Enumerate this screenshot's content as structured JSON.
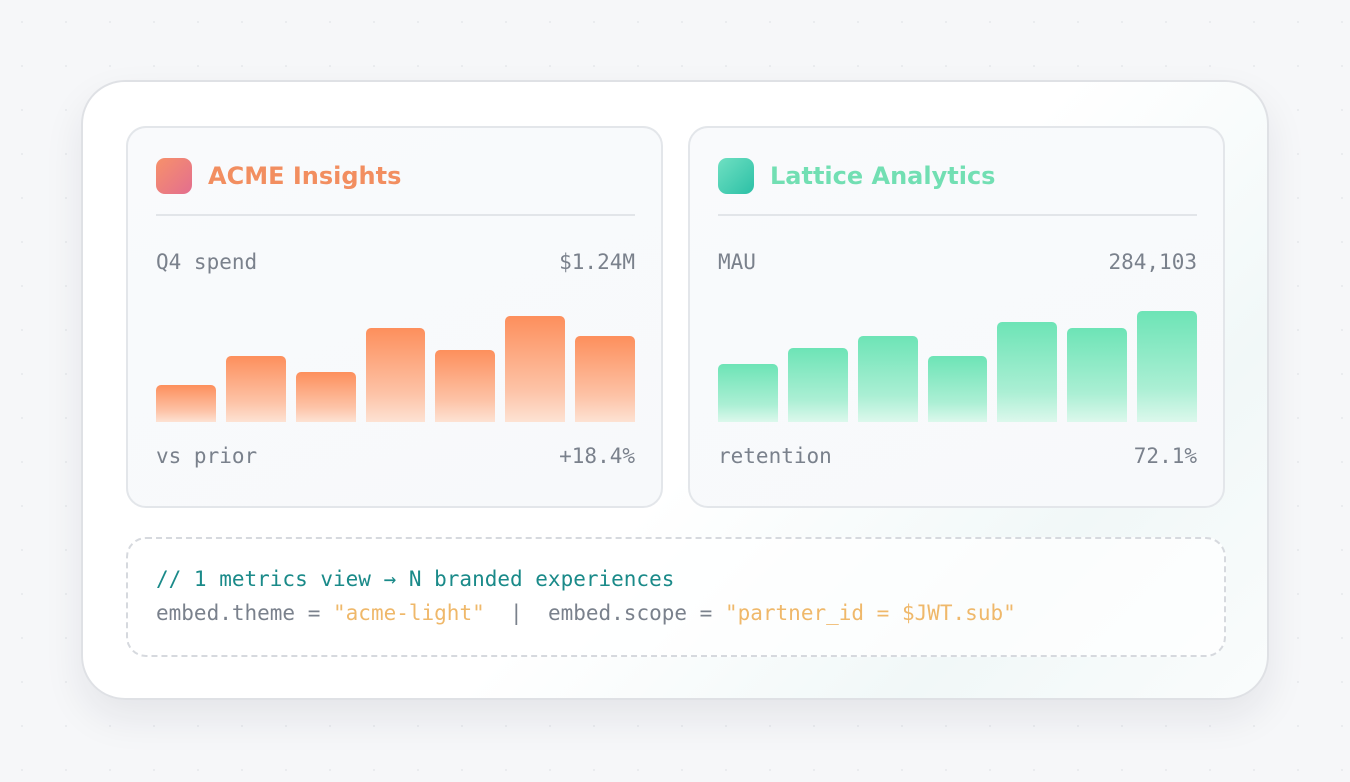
{
  "cards": [
    {
      "brand": "ACME Insights",
      "metric_label": "Q4 spend",
      "metric_value": "$1.24M",
      "footer_label": "vs prior",
      "footer_value": "+18.4%",
      "accent": "#f28e60",
      "bars": [
        0.31,
        0.56,
        0.42,
        0.8,
        0.61,
        0.9,
        0.73
      ]
    },
    {
      "brand": "Lattice Analytics",
      "metric_label": "MAU",
      "metric_value": "284,103",
      "footer_label": "retention",
      "footer_value": "72.1%",
      "accent": "#72dfb3",
      "bars": [
        0.49,
        0.63,
        0.73,
        0.56,
        0.85,
        0.8,
        0.94
      ]
    }
  ],
  "code": {
    "comment": "// 1 metrics view → N branded experiences",
    "theme_key": "embed.theme = ",
    "theme_value": "\"acme-light\"",
    "separator": "  |  ",
    "scope_key": "embed.scope = ",
    "scope_value": "\"partner_id = $JWT.sub\""
  }
}
